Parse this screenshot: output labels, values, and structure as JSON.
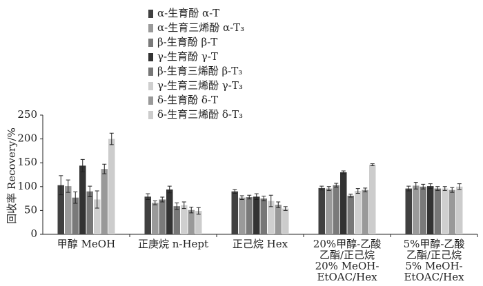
{
  "chart_data": {
    "type": "bar",
    "y_label": "回收率 Recovery/%",
    "categories": [
      "甲醇  MeOH",
      "正庚烷  n-Hept",
      "正己烷  Hex",
      "20%甲醇-乙酸\n乙酯/正己烷\n20% MeOH-\nEtOAC/Hex",
      "5%甲醇-乙酸\n乙酯/正己烷\n5% MeOH-\nEtOAC/Hex"
    ],
    "series": [
      {
        "name": "α-生育酚  α-T",
        "color": "#404040",
        "values": [
          103,
          79,
          90,
          97,
          96
        ],
        "errors": [
          20,
          6,
          4,
          4,
          5
        ]
      },
      {
        "name": "α-生育三烯酚  α-T₃",
        "color": "#9a9a9a",
        "values": [
          101,
          66,
          77,
          96,
          102
        ],
        "errors": [
          13,
          4,
          4,
          4,
          7
        ]
      },
      {
        "name": "β-生育酚  β-T",
        "color": "#7a7a7a",
        "values": [
          77,
          73,
          78,
          103,
          100
        ],
        "errors": [
          12,
          5,
          4,
          4,
          5
        ]
      },
      {
        "name": "γ-生育酚  γ-T",
        "color": "#333333",
        "values": [
          144,
          94,
          79,
          130,
          101
        ],
        "errors": [
          13,
          7,
          6,
          3,
          5
        ]
      },
      {
        "name": "β-生育三烯酚  β-T₃",
        "color": "#777777",
        "values": [
          90,
          59,
          75,
          81,
          96
        ],
        "errors": [
          11,
          7,
          5,
          3,
          4
        ]
      },
      {
        "name": "γ-生育三烯酚  γ-T₃",
        "color": "#cfcfcf",
        "values": [
          73,
          61,
          70,
          91,
          96
        ],
        "errors": [
          18,
          7,
          12,
          5,
          4
        ]
      },
      {
        "name": "δ-生育酚  δ-T",
        "color": "#999999",
        "values": [
          137,
          51,
          62,
          93,
          93
        ],
        "errors": [
          10,
          6,
          6,
          4,
          5
        ]
      },
      {
        "name": "δ-生育三烯酚  δ-T₃",
        "color": "#cccccc",
        "values": [
          200,
          49,
          54,
          146,
          100
        ],
        "errors": [
          12,
          7,
          4,
          2,
          6
        ]
      }
    ],
    "ylim": [
      0,
      250
    ],
    "yticks": [
      0,
      50,
      100,
      150,
      200,
      250
    ]
  }
}
